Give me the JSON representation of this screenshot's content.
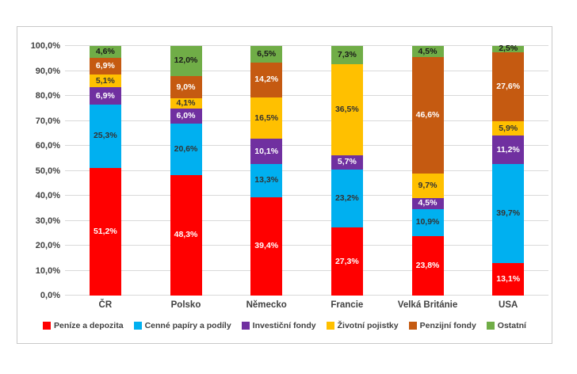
{
  "chart_data": {
    "type": "bar",
    "stacked": true,
    "percent_stacked": true,
    "title": "",
    "xlabel": "",
    "ylabel": "",
    "ylim": [
      0,
      100
    ],
    "grid": true,
    "legend_position": "bottom",
    "number_format": "czech-comma-percent",
    "categories": [
      "ČR",
      "Polsko",
      "Německo",
      "Francie",
      "Velká Británie",
      "USA"
    ],
    "series": [
      {
        "name": "Peníze a depozita",
        "color": "#FF0000",
        "label_color": "#FFFFFF",
        "values": [
          51.2,
          48.3,
          39.4,
          27.3,
          23.8,
          13.1
        ],
        "labels": [
          "51,2%",
          "48,3%",
          "39,4%",
          "27,3%",
          "23,8%",
          "13,1%"
        ]
      },
      {
        "name": "Cenné papíry a podíly",
        "color": "#00B0F0",
        "label_color": "#333333",
        "values": [
          25.3,
          20.6,
          13.3,
          23.2,
          10.9,
          39.7
        ],
        "labels": [
          "25,3%",
          "20,6%",
          "13,3%",
          "23,2%",
          "10,9%",
          "39,7%"
        ]
      },
      {
        "name": "Investiční fondy",
        "color": "#7030A0",
        "label_color": "#FFFFFF",
        "values": [
          6.9,
          6.0,
          10.1,
          5.7,
          4.5,
          11.2
        ],
        "labels": [
          "6,9%",
          "6,0%",
          "10,1%",
          "5,7%",
          "4,5%",
          "11,2%"
        ]
      },
      {
        "name": "Životní pojistky",
        "color": "#FFC000",
        "label_color": "#333333",
        "values": [
          5.1,
          4.1,
          16.5,
          36.5,
          9.7,
          5.9
        ],
        "labels": [
          "5,1%",
          "4,1%",
          "16,5%",
          "36,5%",
          "9,7%",
          "5,9%"
        ]
      },
      {
        "name": "Penzijní fondy",
        "color": "#C55A11",
        "label_color": "#FFFFFF",
        "values": [
          6.9,
          9.0,
          14.2,
          0,
          46.6,
          27.6
        ],
        "labels": [
          "6,9%",
          "9,0%",
          "14,2%",
          "",
          "46,6%",
          "27,6%"
        ]
      },
      {
        "name": "Ostatní",
        "color": "#70AD47",
        "label_color": "#1A1A1A",
        "values": [
          4.6,
          12.0,
          6.5,
          7.3,
          4.5,
          2.5
        ],
        "labels": [
          "4,6%",
          "12,0%",
          "6,5%",
          "7,3%",
          "4,5%",
          "2,5%"
        ]
      }
    ],
    "y_ticks": [
      "0,0%",
      "10,0%",
      "20,0%",
      "30,0%",
      "40,0%",
      "50,0%",
      "60,0%",
      "70,0%",
      "80,0%",
      "90,0%",
      "100,0%"
    ],
    "colors": {
      "gridline": "#D9D9D9",
      "frame_border": "#C9C9C9",
      "axis_text": "#404040",
      "background": "#FFFFFF"
    }
  }
}
